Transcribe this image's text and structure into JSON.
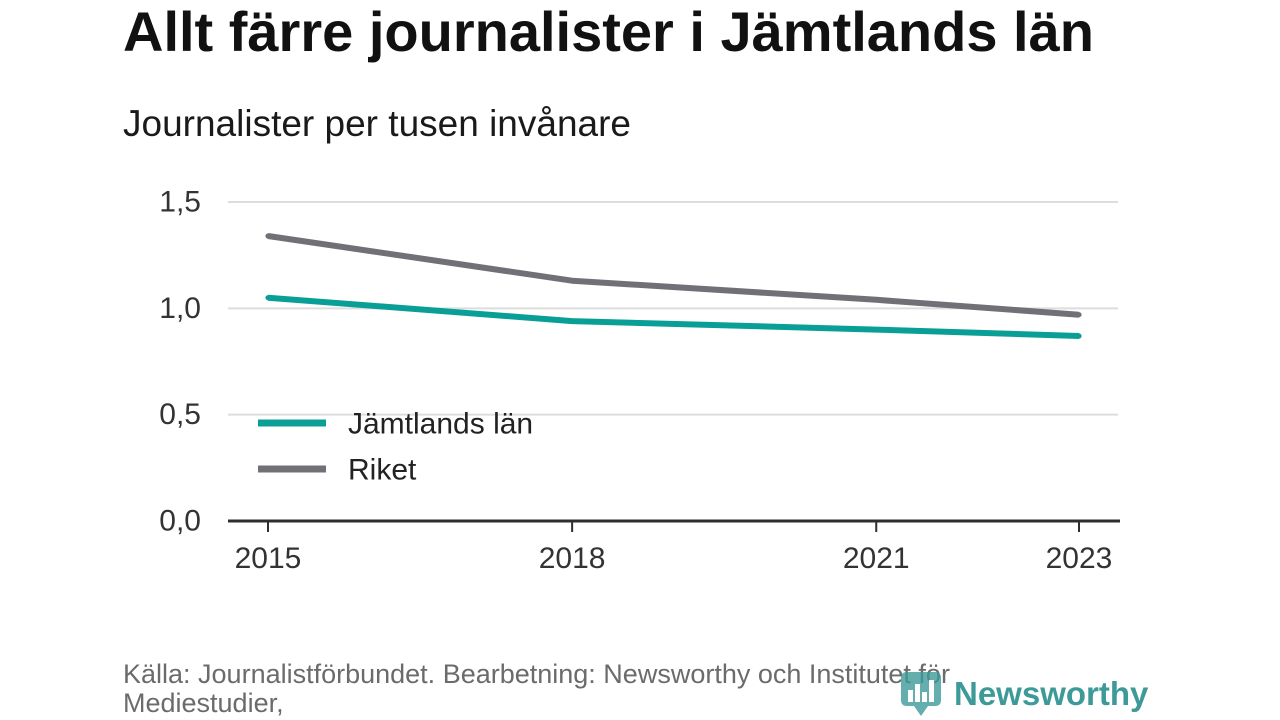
{
  "chart_data": {
    "type": "line",
    "title": "Allt färre journalister i Jämtlands län",
    "subtitle": "Journalister per tusen invånare",
    "x": [
      2015,
      2018,
      2021,
      2023
    ],
    "xlim": [
      2015,
      2023
    ],
    "ylim": [
      0,
      1.5
    ],
    "x_ticks": [
      {
        "value": 2015,
        "label": "2015"
      },
      {
        "value": 2018,
        "label": "2018"
      },
      {
        "value": 2021,
        "label": "2021"
      },
      {
        "value": 2023,
        "label": "2023"
      }
    ],
    "y_ticks": [
      {
        "value": 0,
        "label": "0,0"
      },
      {
        "value": 0.5,
        "label": "0,5"
      },
      {
        "value": 1.0,
        "label": "1,0"
      },
      {
        "value": 1.5,
        "label": "1,5"
      }
    ],
    "grid": true,
    "legend": "bottom-left",
    "series": [
      {
        "name": "Jämtlands län",
        "values": [
          1.05,
          0.94,
          0.9,
          0.87
        ],
        "color": "#0a9f96"
      },
      {
        "name": "Riket",
        "values": [
          1.34,
          1.13,
          1.04,
          0.97
        ],
        "color": "#707077"
      }
    ]
  },
  "source": "Källa: Journalistförbundet. Bearbetning: Newsworthy och Institutet för Mediestudier,",
  "logo": {
    "text": "Newsworthy",
    "icon": "bar-chart-bubble-icon",
    "color": "#3d9a99"
  },
  "colors": {
    "background": "#ffffff",
    "title": "#111111",
    "tick_text": "#333333",
    "source_text": "#6b6b6b",
    "grid": "#dddddd",
    "axis": "#2e2e2e"
  }
}
